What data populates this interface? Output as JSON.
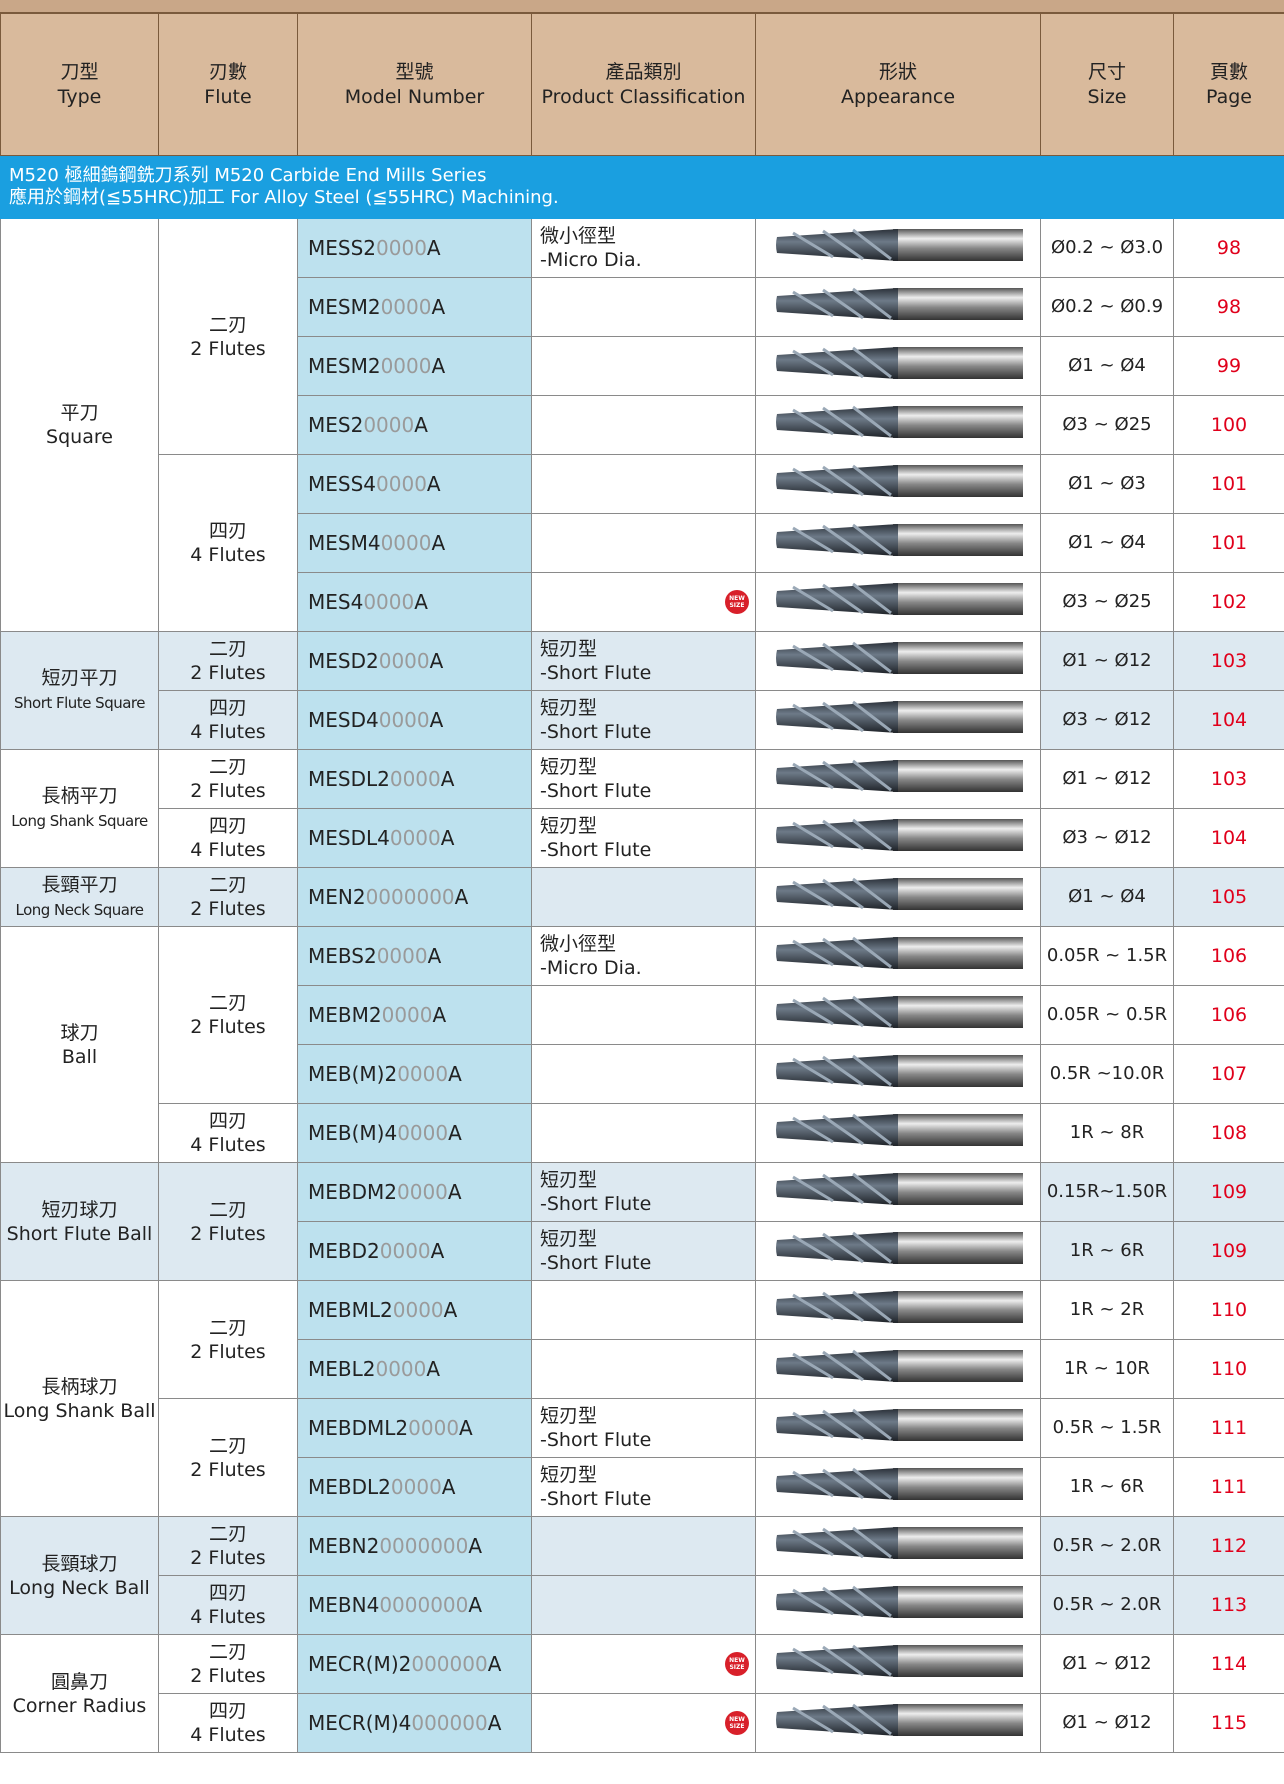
{
  "header": {
    "columns": [
      {
        "zh": "刀型",
        "en": "Type"
      },
      {
        "zh": "刃數",
        "en": "Flute"
      },
      {
        "zh": "型號",
        "en": "Model Number"
      },
      {
        "zh": "產品類別",
        "en": "Product Classification"
      },
      {
        "zh": "形狀",
        "en": "Appearance"
      },
      {
        "zh": "尺寸",
        "en": "Size"
      },
      {
        "zh": "頁數",
        "en": "Page"
      }
    ]
  },
  "series_band": {
    "line1": "M520 極細鎢鋼銑刀系列 M520 Carbide End Mills Series",
    "line2": "應用於鋼材(≦55HRC)加工 For Alloy Steel (≦55HRC) Machining."
  },
  "groups": [
    {
      "zh": "平刀",
      "en": "Square",
      "flutes": [
        {
          "zh": "二刃",
          "en": "2 Flutes",
          "rows": [
            {
              "model": {
                "prefix": "MESS2",
                "placeholder": "0000",
                "suffix": "A"
              },
              "class": {
                "zh": "微小徑型",
                "en": "-Micro Dia."
              },
              "size": "Ø0.2 ~ Ø3.0",
              "page": 98
            },
            {
              "model": {
                "prefix": "MESM2",
                "placeholder": "0000",
                "suffix": "A"
              },
              "size": "Ø0.2 ~ Ø0.9",
              "page": 98
            },
            {
              "model": {
                "prefix": "MESM2",
                "placeholder": "0000",
                "suffix": "A"
              },
              "size": "Ø1 ~ Ø4",
              "page": 99
            },
            {
              "model": {
                "prefix": "MES2",
                "placeholder": "0000",
                "suffix": "A"
              },
              "size": "Ø3 ~ Ø25",
              "page": 100
            }
          ]
        },
        {
          "zh": "四刃",
          "en": "4 Flutes",
          "rows": [
            {
              "model": {
                "prefix": "MESS4",
                "placeholder": "0000",
                "suffix": "A"
              },
              "size": "Ø1 ~ Ø3",
              "page": 101
            },
            {
              "model": {
                "prefix": "MESM4",
                "placeholder": "0000",
                "suffix": "A"
              },
              "size": "Ø1 ~ Ø4",
              "page": 101
            },
            {
              "model": {
                "prefix": "MES4",
                "placeholder": "0000",
                "suffix": "A"
              },
              "badge": "NEW SIZE",
              "size": "Ø3 ~ Ø25",
              "page": 102
            }
          ]
        }
      ]
    },
    {
      "zh": "短刃平刀",
      "en": "Short Flute Square",
      "flutes": [
        {
          "zh": "二刃",
          "en": "2 Flutes",
          "rows": [
            {
              "model": {
                "prefix": "MESD2",
                "placeholder": "0000",
                "suffix": "A"
              },
              "class": {
                "zh": "短刃型",
                "en": "-Short Flute"
              },
              "size": "Ø1 ~ Ø12",
              "page": 103
            }
          ]
        },
        {
          "zh": "四刃",
          "en": "4 Flutes",
          "rows": [
            {
              "model": {
                "prefix": "MESD4",
                "placeholder": "0000",
                "suffix": "A"
              },
              "class": {
                "zh": "短刃型",
                "en": "-Short Flute"
              },
              "size": "Ø3 ~ Ø12",
              "page": 104
            }
          ]
        }
      ]
    },
    {
      "zh": "長柄平刀",
      "en": "Long Shank Square",
      "flutes": [
        {
          "zh": "二刃",
          "en": "2 Flutes",
          "rows": [
            {
              "model": {
                "prefix": "MESDL2",
                "placeholder": "0000",
                "suffix": "A"
              },
              "class": {
                "zh": "短刃型",
                "en": "-Short Flute"
              },
              "size": "Ø1 ~ Ø12",
              "page": 103
            }
          ]
        },
        {
          "zh": "四刃",
          "en": "4 Flutes",
          "rows": [
            {
              "model": {
                "prefix": "MESDL4",
                "placeholder": "0000",
                "suffix": "A"
              },
              "class": {
                "zh": "短刃型",
                "en": "-Short Flute"
              },
              "size": "Ø3 ~ Ø12",
              "page": 104
            }
          ]
        }
      ]
    },
    {
      "zh": "長頸平刀",
      "en": "Long Neck Square",
      "flutes": [
        {
          "zh": "二刃",
          "en": "2 Flutes",
          "rows": [
            {
              "model": {
                "prefix": "MEN2",
                "placeholder": "0000000",
                "suffix": "A"
              },
              "size": "Ø1 ~ Ø4",
              "page": 105
            }
          ]
        }
      ]
    },
    {
      "zh": "球刀",
      "en": "Ball",
      "flutes": [
        {
          "zh": "二刃",
          "en": "2 Flutes",
          "rows": [
            {
              "model": {
                "prefix": "MEBS2",
                "placeholder": "0000",
                "suffix": "A"
              },
              "class": {
                "zh": "微小徑型",
                "en": "-Micro Dia."
              },
              "size": "0.05R ~ 1.5R",
              "page": 106
            },
            {
              "model": {
                "prefix": "MEBM2",
                "placeholder": "0000",
                "suffix": "A"
              },
              "size": "0.05R ~ 0.5R",
              "page": 106
            },
            {
              "model": {
                "prefix": "MEB(M)2",
                "placeholder": "0000",
                "suffix": "A"
              },
              "size": "0.5R ~10.0R",
              "page": 107
            }
          ]
        },
        {
          "zh": "四刃",
          "en": "4 Flutes",
          "rows": [
            {
              "model": {
                "prefix": "MEB(M)4",
                "placeholder": "0000",
                "suffix": "A"
              },
              "size": "1R ~ 8R",
              "page": 108
            }
          ]
        }
      ]
    },
    {
      "zh": "短刃球刀",
      "en": "Short Flute Ball",
      "flutes": [
        {
          "zh": "二刃",
          "en": "2 Flutes",
          "rows": [
            {
              "model": {
                "prefix": "MEBDM2",
                "placeholder": "0000",
                "suffix": "A"
              },
              "class": {
                "zh": "短刃型",
                "en": "-Short Flute"
              },
              "size": "0.15R~1.50R",
              "page": 109
            },
            {
              "model": {
                "prefix": "MEBD2",
                "placeholder": "0000",
                "suffix": "A"
              },
              "class": {
                "zh": "短刃型",
                "en": "-Short Flute"
              },
              "size": "1R ~ 6R",
              "page": 109
            }
          ]
        }
      ]
    },
    {
      "zh": "長柄球刀",
      "en": "Long Shank Ball",
      "flutes": [
        {
          "zh": "二刃",
          "en": "2 Flutes",
          "rows": [
            {
              "model": {
                "prefix": "MEBML2",
                "placeholder": "0000",
                "suffix": "A"
              },
              "size": "1R ~ 2R",
              "page": 110
            },
            {
              "model": {
                "prefix": "MEBL2",
                "placeholder": "0000",
                "suffix": "A"
              },
              "size": "1R ~ 10R",
              "page": 110
            }
          ]
        },
        {
          "zh": "二刃",
          "en": "2 Flutes",
          "rows": [
            {
              "model": {
                "prefix": "MEBDML2",
                "placeholder": "0000",
                "suffix": "A"
              },
              "class": {
                "zh": "短刃型",
                "en": "-Short Flute"
              },
              "size": "0.5R ~ 1.5R",
              "page": 111
            },
            {
              "model": {
                "prefix": "MEBDL2",
                "placeholder": "0000",
                "suffix": "A"
              },
              "class": {
                "zh": "短刃型",
                "en": "-Short Flute"
              },
              "size": "1R ~ 6R",
              "page": 111
            }
          ]
        }
      ]
    },
    {
      "zh": "長頸球刀",
      "en": "Long Neck Ball",
      "flutes": [
        {
          "zh": "二刃",
          "en": "2 Flutes",
          "rows": [
            {
              "model": {
                "prefix": "MEBN2",
                "placeholder": "0000000",
                "suffix": "A"
              },
              "size": "0.5R ~ 2.0R",
              "page": 112
            }
          ]
        },
        {
          "zh": "四刃",
          "en": "4 Flutes",
          "rows": [
            {
              "model": {
                "prefix": "MEBN4",
                "placeholder": "0000000",
                "suffix": "A"
              },
              "size": "0.5R ~ 2.0R",
              "page": 113
            }
          ]
        }
      ]
    },
    {
      "zh": "圓鼻刀",
      "en": "Corner Radius",
      "flutes": [
        {
          "zh": "二刃",
          "en": "2 Flutes",
          "rows": [
            {
              "model": {
                "prefix": "MECR(M)2",
                "placeholder": "000000",
                "suffix": "A"
              },
              "badge": "NEW SIZE",
              "size": "Ø1 ~ Ø12",
              "page": 114
            }
          ]
        },
        {
          "zh": "四刃",
          "en": "4 Flutes",
          "rows": [
            {
              "model": {
                "prefix": "MECR(M)4",
                "placeholder": "000000",
                "suffix": "A"
              },
              "badge": "NEW SIZE",
              "size": "Ø1 ~ Ø12",
              "page": 115
            }
          ]
        }
      ]
    }
  ]
}
